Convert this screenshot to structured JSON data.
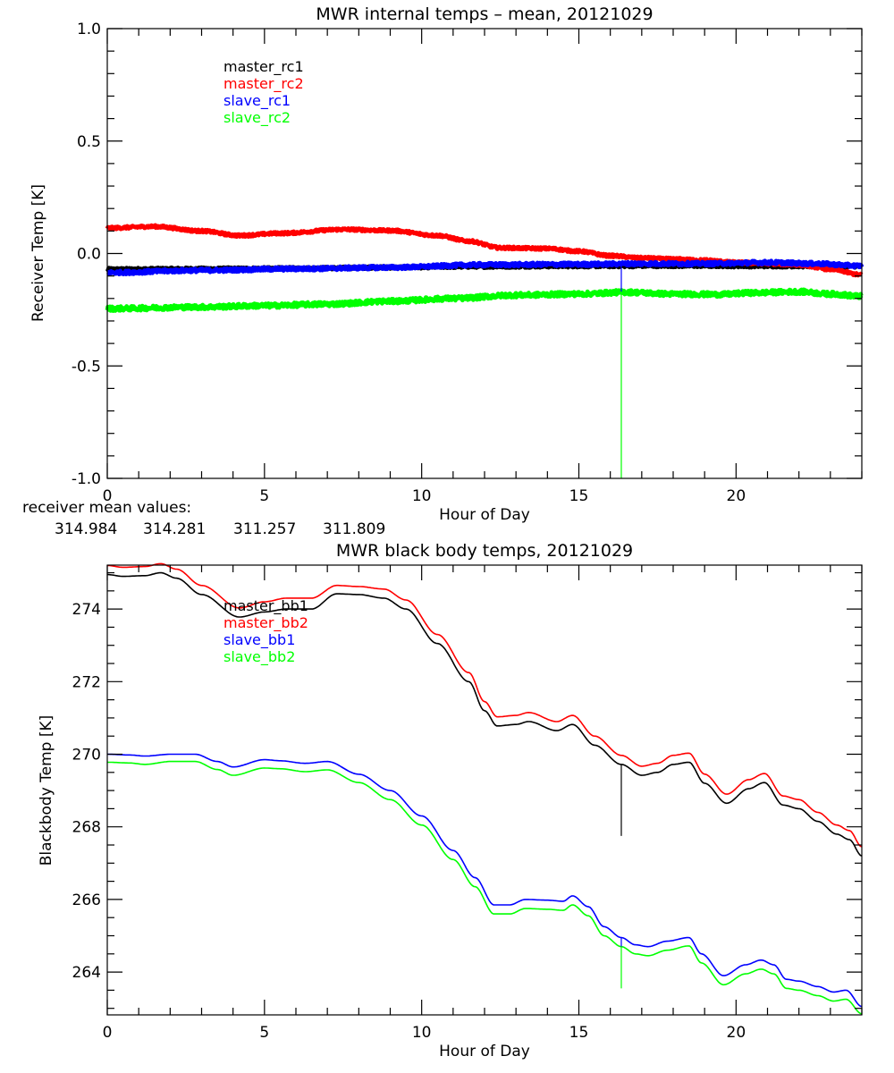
{
  "chart_data": [
    {
      "type": "line",
      "title": "MWR internal temps – mean, 20121029",
      "xlabel": "Hour of Day",
      "ylabel": "Receiver Temp [K]",
      "xlim": [
        0,
        24
      ],
      "ylim": [
        -1.0,
        1.0
      ],
      "xticks": [
        0,
        5,
        10,
        15,
        20
      ],
      "xtick_labels": [
        "0",
        "5",
        "10",
        "15",
        "20"
      ],
      "yticks": [
        -1.0,
        -0.5,
        0.0,
        0.5,
        1.0
      ],
      "ytick_labels": [
        "-1.0",
        "-0.5",
        "0.0",
        "0.5",
        "1.0"
      ],
      "x_minor_step": 1,
      "y_minor_step": 0.1,
      "grid": false,
      "legend_position": "top-left",
      "series": [
        {
          "name": "master_rc1",
          "color": "#000000",
          "noise": 0.006,
          "points": [
            [
              0,
              -0.07
            ],
            [
              3,
              -0.068
            ],
            [
              6,
              -0.066
            ],
            [
              9,
              -0.062
            ],
            [
              12,
              -0.058
            ],
            [
              15,
              -0.056
            ],
            [
              18,
              -0.055
            ],
            [
              21,
              -0.056
            ],
            [
              24,
              -0.057
            ]
          ]
        },
        {
          "name": "master_rc2",
          "color": "#ff0000",
          "noise": 0.006,
          "points": [
            [
              0,
              0.113
            ],
            [
              1.5,
              0.12
            ],
            [
              3,
              0.1
            ],
            [
              4.2,
              0.08
            ],
            [
              5.5,
              0.09
            ],
            [
              7.5,
              0.107
            ],
            [
              9,
              0.102
            ],
            [
              10.5,
              0.08
            ],
            [
              11.5,
              0.055
            ],
            [
              12.5,
              0.025
            ],
            [
              14,
              0.022
            ],
            [
              15,
              0.01
            ],
            [
              16,
              -0.01
            ],
            [
              17,
              -0.02
            ],
            [
              18,
              -0.025
            ],
            [
              19,
              -0.03
            ],
            [
              20,
              -0.04
            ],
            [
              21,
              -0.045
            ],
            [
              22,
              -0.05
            ],
            [
              23,
              -0.07
            ],
            [
              24,
              -0.095
            ]
          ]
        },
        {
          "name": "slave_rc1",
          "color": "#0000ff",
          "noise": 0.008,
          "points": [
            [
              0,
              -0.085
            ],
            [
              3,
              -0.075
            ],
            [
              6,
              -0.068
            ],
            [
              9,
              -0.062
            ],
            [
              12,
              -0.05
            ],
            [
              15,
              -0.048
            ],
            [
              17,
              -0.045
            ],
            [
              19,
              -0.045
            ],
            [
              21,
              -0.04
            ],
            [
              22.5,
              -0.045
            ],
            [
              24,
              -0.055
            ]
          ]
        },
        {
          "name": "slave_rc2",
          "color": "#00ff00",
          "noise": 0.01,
          "points": [
            [
              0,
              -0.245
            ],
            [
              3,
              -0.238
            ],
            [
              5,
              -0.232
            ],
            [
              7,
              -0.225
            ],
            [
              9,
              -0.212
            ],
            [
              11,
              -0.2
            ],
            [
              13,
              -0.185
            ],
            [
              15,
              -0.18
            ],
            [
              16.5,
              -0.172
            ],
            [
              18,
              -0.18
            ],
            [
              19.5,
              -0.182
            ],
            [
              20.5,
              -0.175
            ],
            [
              22,
              -0.17
            ],
            [
              23,
              -0.18
            ],
            [
              24,
              -0.19
            ]
          ]
        }
      ],
      "spikes": [
        {
          "hour": 16.35,
          "from": -0.045,
          "to": -0.17,
          "color": "#0000ff"
        },
        {
          "hour": 16.35,
          "from": -0.17,
          "to": -1.0,
          "color": "#00ff00"
        }
      ],
      "annotation": {
        "label": "receiver mean values:",
        "values": [
          {
            "text": "314.984",
            "color": "#000000"
          },
          {
            "text": "314.281",
            "color": "#ff0000"
          },
          {
            "text": "311.257",
            "color": "#0000ff"
          },
          {
            "text": "311.809",
            "color": "#00ff00"
          }
        ]
      }
    },
    {
      "type": "line",
      "title": "MWR black body temps, 20121029",
      "xlabel": "Hour of Day",
      "ylabel": "Blackbody Temp [K]",
      "xlim": [
        0,
        24
      ],
      "ylim": [
        262.82,
        275.21
      ],
      "xticks": [
        0,
        5,
        10,
        15,
        20
      ],
      "xtick_labels": [
        "0",
        "5",
        "10",
        "15",
        "20"
      ],
      "yticks": [
        264,
        266,
        268,
        270,
        272,
        274
      ],
      "ytick_labels": [
        "264",
        "266",
        "268",
        "270",
        "272",
        "274"
      ],
      "x_minor_step": 1,
      "y_minor_step": 0.5,
      "grid": false,
      "legend_position": "top-left",
      "series": [
        {
          "name": "master_bb1",
          "color": "#000000",
          "noise": 0,
          "points": [
            [
              0,
              274.95
            ],
            [
              0.5,
              274.9
            ],
            [
              1.2,
              274.92
            ],
            [
              1.7,
              275.0
            ],
            [
              2.2,
              274.85
            ],
            [
              3,
              274.4
            ],
            [
              4.2,
              273.78
            ],
            [
              5,
              273.92
            ],
            [
              5.7,
              274.0
            ],
            [
              6.5,
              274.0
            ],
            [
              7.3,
              274.42
            ],
            [
              8,
              274.4
            ],
            [
              8.8,
              274.3
            ],
            [
              9.5,
              274.0
            ],
            [
              10.5,
              273.05
            ],
            [
              11.5,
              272.0
            ],
            [
              12,
              271.2
            ],
            [
              12.4,
              270.78
            ],
            [
              13,
              270.82
            ],
            [
              13.4,
              270.9
            ],
            [
              14.3,
              270.65
            ],
            [
              14.8,
              270.82
            ],
            [
              15.5,
              270.25
            ],
            [
              16.35,
              269.72
            ],
            [
              17,
              269.42
            ],
            [
              17.5,
              269.5
            ],
            [
              18,
              269.72
            ],
            [
              18.5,
              269.78
            ],
            [
              19,
              269.2
            ],
            [
              19.7,
              268.65
            ],
            [
              20.4,
              269.05
            ],
            [
              20.9,
              269.22
            ],
            [
              21.5,
              268.6
            ],
            [
              22,
              268.5
            ],
            [
              22.6,
              268.15
            ],
            [
              23.2,
              267.8
            ],
            [
              23.6,
              267.65
            ],
            [
              24,
              267.2
            ]
          ]
        },
        {
          "name": "master_bb2",
          "color": "#ff0000",
          "noise": 0,
          "points": [
            [
              0,
              275.2
            ],
            [
              0.5,
              275.15
            ],
            [
              1.2,
              275.17
            ],
            [
              1.7,
              275.25
            ],
            [
              2.2,
              275.1
            ],
            [
              3,
              274.65
            ],
            [
              4.2,
              274.03
            ],
            [
              5,
              274.2
            ],
            [
              5.7,
              274.3
            ],
            [
              6.5,
              274.3
            ],
            [
              7.3,
              274.65
            ],
            [
              8,
              274.62
            ],
            [
              8.8,
              274.55
            ],
            [
              9.5,
              274.25
            ],
            [
              10.5,
              273.3
            ],
            [
              11.5,
              272.25
            ],
            [
              12,
              271.45
            ],
            [
              12.4,
              271.03
            ],
            [
              13,
              271.07
            ],
            [
              13.4,
              271.15
            ],
            [
              14.3,
              270.9
            ],
            [
              14.8,
              271.07
            ],
            [
              15.5,
              270.5
            ],
            [
              16.35,
              269.97
            ],
            [
              17,
              269.67
            ],
            [
              17.5,
              269.75
            ],
            [
              18,
              269.97
            ],
            [
              18.5,
              270.03
            ],
            [
              19,
              269.45
            ],
            [
              19.7,
              268.9
            ],
            [
              20.4,
              269.3
            ],
            [
              20.9,
              269.47
            ],
            [
              21.5,
              268.85
            ],
            [
              22,
              268.75
            ],
            [
              22.6,
              268.4
            ],
            [
              23.2,
              268.05
            ],
            [
              23.6,
              267.9
            ],
            [
              24,
              267.45
            ]
          ]
        },
        {
          "name": "slave_bb1",
          "color": "#0000ff",
          "noise": 0,
          "points": [
            [
              0,
              270.0
            ],
            [
              0.7,
              269.98
            ],
            [
              1.2,
              269.95
            ],
            [
              2,
              270.0
            ],
            [
              2.8,
              270.0
            ],
            [
              3.5,
              269.8
            ],
            [
              4,
              269.65
            ],
            [
              5,
              269.85
            ],
            [
              5.5,
              269.82
            ],
            [
              6.3,
              269.75
            ],
            [
              7,
              269.8
            ],
            [
              8,
              269.45
            ],
            [
              9,
              269.0
            ],
            [
              10,
              268.3
            ],
            [
              11,
              267.35
            ],
            [
              11.7,
              266.6
            ],
            [
              12.3,
              265.85
            ],
            [
              12.8,
              265.85
            ],
            [
              13.3,
              266.0
            ],
            [
              14,
              265.98
            ],
            [
              14.5,
              265.95
            ],
            [
              14.8,
              266.1
            ],
            [
              15.3,
              265.8
            ],
            [
              15.8,
              265.25
            ],
            [
              16.35,
              264.95
            ],
            [
              16.8,
              264.75
            ],
            [
              17.2,
              264.7
            ],
            [
              17.8,
              264.85
            ],
            [
              18.5,
              264.95
            ],
            [
              18.9,
              264.5
            ],
            [
              19.6,
              263.9
            ],
            [
              20.3,
              264.2
            ],
            [
              20.8,
              264.33
            ],
            [
              21.2,
              264.2
            ],
            [
              21.6,
              263.8
            ],
            [
              22,
              263.75
            ],
            [
              22.6,
              263.6
            ],
            [
              23.1,
              263.45
            ],
            [
              23.5,
              263.5
            ],
            [
              24,
              263.05
            ]
          ]
        },
        {
          "name": "slave_bb2",
          "color": "#00ff00",
          "noise": 0,
          "points": [
            [
              0,
              269.78
            ],
            [
              0.7,
              269.76
            ],
            [
              1.2,
              269.72
            ],
            [
              2,
              269.8
            ],
            [
              2.8,
              269.8
            ],
            [
              3.5,
              269.58
            ],
            [
              4,
              269.42
            ],
            [
              5,
              269.62
            ],
            [
              5.5,
              269.6
            ],
            [
              6.3,
              269.52
            ],
            [
              7,
              269.57
            ],
            [
              8,
              269.22
            ],
            [
              9,
              268.75
            ],
            [
              10,
              268.05
            ],
            [
              11,
              267.1
            ],
            [
              11.7,
              266.35
            ],
            [
              12.3,
              265.6
            ],
            [
              12.8,
              265.6
            ],
            [
              13.3,
              265.75
            ],
            [
              14,
              265.73
            ],
            [
              14.5,
              265.7
            ],
            [
              14.8,
              265.85
            ],
            [
              15.3,
              265.55
            ],
            [
              15.8,
              265.0
            ],
            [
              16.35,
              264.7
            ],
            [
              16.8,
              264.5
            ],
            [
              17.2,
              264.45
            ],
            [
              17.8,
              264.6
            ],
            [
              18.5,
              264.72
            ],
            [
              18.9,
              264.25
            ],
            [
              19.6,
              263.65
            ],
            [
              20.3,
              263.95
            ],
            [
              20.8,
              264.08
            ],
            [
              21.2,
              263.95
            ],
            [
              21.6,
              263.55
            ],
            [
              22,
              263.5
            ],
            [
              22.6,
              263.35
            ],
            [
              23.1,
              263.2
            ],
            [
              23.5,
              263.25
            ],
            [
              24,
              262.85
            ]
          ]
        }
      ],
      "spikes": [
        {
          "hour": 16.35,
          "from": 269.72,
          "to": 267.75,
          "color": "#000000"
        },
        {
          "hour": 16.35,
          "from": 264.95,
          "to": 264.7,
          "color": "#0000ff"
        },
        {
          "hour": 16.35,
          "from": 264.7,
          "to": 263.55,
          "color": "#00ff00"
        }
      ],
      "annotation": null
    }
  ]
}
